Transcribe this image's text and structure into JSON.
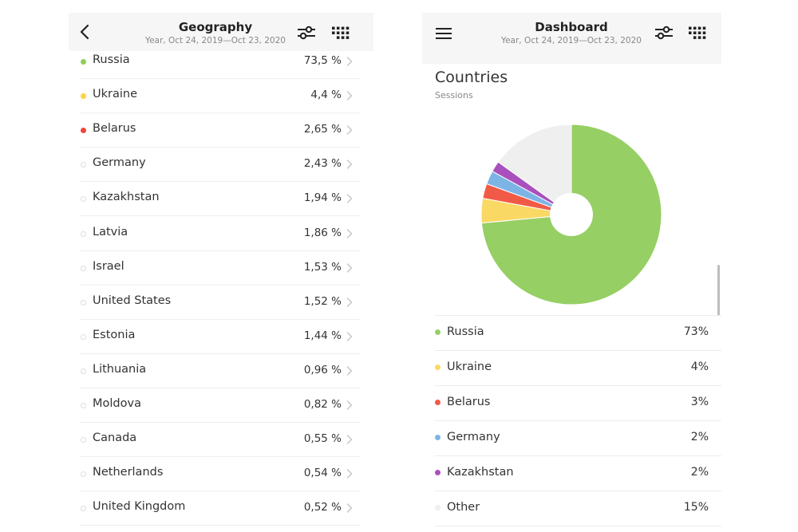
{
  "geography": {
    "title": "Geography",
    "subtitle": "Year, Oct 24, 2019—Oct 23, 2020",
    "rows": [
      {
        "name": "Russia",
        "value": "73,5 %",
        "color": "#8fcf5a",
        "dot": "filled"
      },
      {
        "name": "Ukraine",
        "value": "4,4 %",
        "color": "#ffd23f",
        "dot": "filled"
      },
      {
        "name": "Belarus",
        "value": "2,65 %",
        "color": "#f0483a",
        "dot": "filled"
      },
      {
        "name": "Germany",
        "value": "2,43 %",
        "color": "#dddddd",
        "dot": "empty"
      },
      {
        "name": "Kazakhstan",
        "value": "1,94 %",
        "color": "#dddddd",
        "dot": "empty"
      },
      {
        "name": "Latvia",
        "value": "1,86 %",
        "color": "#dddddd",
        "dot": "empty"
      },
      {
        "name": "Israel",
        "value": "1,53 %",
        "color": "#dddddd",
        "dot": "empty"
      },
      {
        "name": "United States",
        "value": "1,52 %",
        "color": "#dddddd",
        "dot": "empty"
      },
      {
        "name": "Estonia",
        "value": "1,44 %",
        "color": "#dddddd",
        "dot": "empty"
      },
      {
        "name": "Lithuania",
        "value": "0,96 %",
        "color": "#dddddd",
        "dot": "empty"
      },
      {
        "name": "Moldova",
        "value": "0,82 %",
        "color": "#dddddd",
        "dot": "empty"
      },
      {
        "name": "Canada",
        "value": "0,55 %",
        "color": "#dddddd",
        "dot": "empty"
      },
      {
        "name": "Netherlands",
        "value": "0,54 %",
        "color": "#dddddd",
        "dot": "empty"
      },
      {
        "name": "United Kingdom",
        "value": "0,52 %",
        "color": "#dddddd",
        "dot": "empty"
      }
    ]
  },
  "dashboard": {
    "title": "Dashboard",
    "subtitle": "Year, Oct 24, 2019—Oct 23, 2020",
    "widget_title": "Countries",
    "widget_subtitle": "Sessions",
    "rows": [
      {
        "name": "Russia",
        "value": "73%",
        "color": "#96cf64"
      },
      {
        "name": "Ukraine",
        "value": "4%",
        "color": "#fad864"
      },
      {
        "name": "Belarus",
        "value": "3%",
        "color": "#f05a46"
      },
      {
        "name": "Germany",
        "value": "2%",
        "color": "#7db4e6"
      },
      {
        "name": "Kazakhstan",
        "value": "2%",
        "color": "#aa50be"
      },
      {
        "name": "Other",
        "value": "15%",
        "color": "#efefef"
      }
    ]
  },
  "icons": {
    "back": "chevron-left-icon",
    "filter": "sliders-icon",
    "grid": "dot-grid-icon",
    "menu": "hamburger-menu-icon",
    "row_chevron": "chevron-right-icon"
  },
  "chart_data": {
    "type": "pie",
    "title": "Countries",
    "subtitle": "Sessions",
    "categories": [
      "Russia",
      "Ukraine",
      "Belarus",
      "Germany",
      "Kazakhstan",
      "Other"
    ],
    "values": [
      73.5,
      4.4,
      2.65,
      2.43,
      1.94,
      15.08
    ],
    "colors": [
      "#96cf64",
      "#fad864",
      "#f05a46",
      "#7db4e6",
      "#aa50be",
      "#efefef"
    ],
    "donut_hole": true
  }
}
